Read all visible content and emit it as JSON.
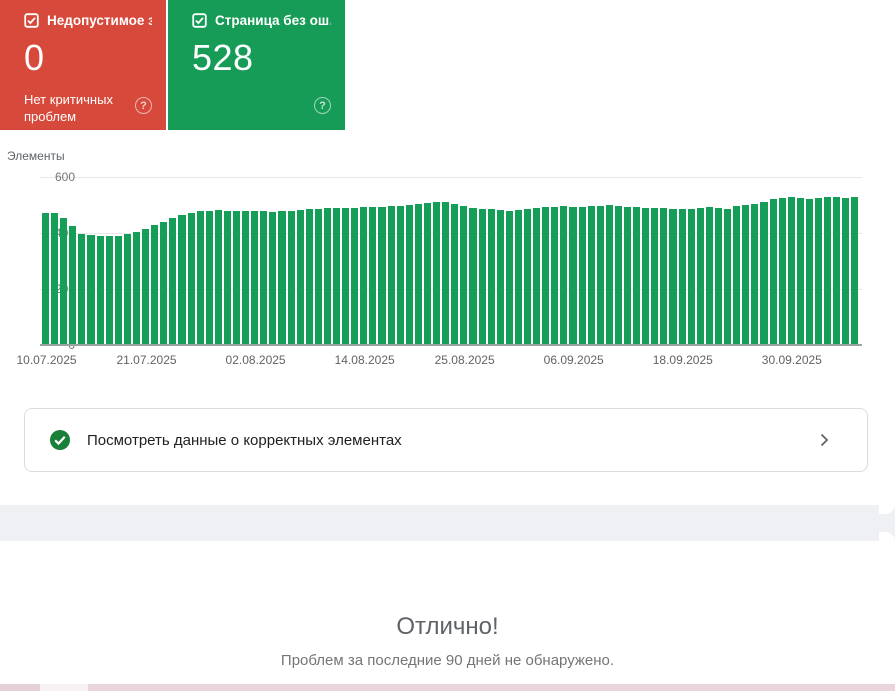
{
  "cards": {
    "error": {
      "label": "Недопустимое з…",
      "value": "0",
      "note": "Нет критичных проблем",
      "help_glyph": "?",
      "color": "#d6493b"
    },
    "valid": {
      "label": "Страница без ош…",
      "value": "528",
      "help_glyph": "?",
      "color": "#169c57"
    }
  },
  "chart_data": {
    "type": "bar",
    "ylabel": "Элементы",
    "bar_color": "#149e58",
    "ylim": [
      0,
      600
    ],
    "y_ticks": [
      600,
      400,
      200,
      0
    ],
    "grid": true,
    "x_ticks": [
      {
        "label": "10.07.2025",
        "index": 0
      },
      {
        "label": "21.07.2025",
        "index": 11
      },
      {
        "label": "02.08.2025",
        "index": 23
      },
      {
        "label": "14.08.2025",
        "index": 35
      },
      {
        "label": "25.08.2025",
        "index": 46
      },
      {
        "label": "06.09.2025",
        "index": 58
      },
      {
        "label": "18.09.2025",
        "index": 70
      },
      {
        "label": "30.09.2025",
        "index": 82
      }
    ],
    "values": [
      470,
      472,
      452,
      425,
      398,
      393,
      390,
      388,
      390,
      395,
      403,
      413,
      427,
      440,
      452,
      465,
      472,
      477,
      480,
      481,
      480,
      479,
      478,
      477,
      478,
      476,
      477,
      479,
      482,
      484,
      486,
      488,
      489,
      490,
      491,
      492,
      493,
      494,
      496,
      498,
      500,
      503,
      507,
      510,
      509,
      505,
      496,
      490,
      487,
      485,
      483,
      480,
      483,
      487,
      490,
      492,
      494,
      495,
      494,
      493,
      495,
      497,
      499,
      497,
      494,
      492,
      490,
      489,
      488,
      487,
      486,
      487,
      490,
      493,
      490,
      487,
      495,
      499,
      505,
      512,
      520,
      525,
      527,
      524,
      520,
      526,
      530,
      527,
      525,
      528
    ]
  },
  "link_card": {
    "label": "Посмотреть данные о корректных элементах",
    "check_color": "#188038"
  },
  "footer": {
    "title": "Отлично!",
    "subtitle": "Проблем за последние 90 дней не обнаружено."
  }
}
